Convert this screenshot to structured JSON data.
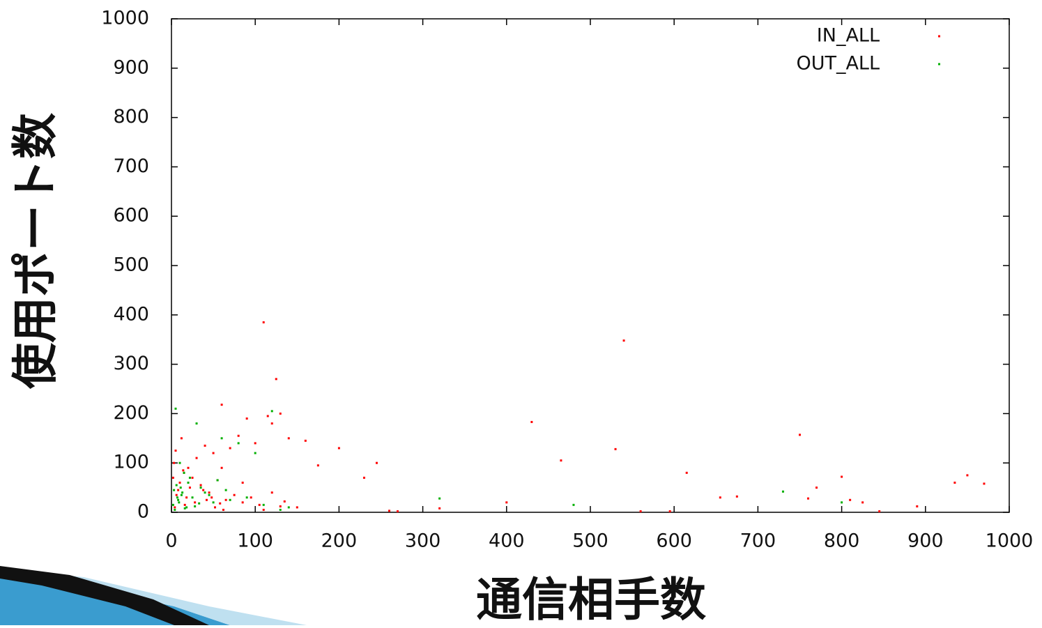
{
  "chart_data": {
    "type": "scatter",
    "x_label": "通信相手数",
    "y_label": "使用ポート数",
    "xlim": [
      0,
      1000
    ],
    "ylim": [
      0,
      1000
    ],
    "xticks": [
      0,
      100,
      200,
      300,
      400,
      500,
      600,
      700,
      800,
      900,
      1000
    ],
    "yticks": [
      0,
      100,
      200,
      300,
      400,
      500,
      600,
      700,
      800,
      900,
      1000
    ],
    "legend": "upper right",
    "series": [
      {
        "name": "IN_ALL",
        "color": "#ff0000",
        "x": [
          110,
          125,
          540,
          430,
          750,
          530,
          465,
          200,
          245,
          60,
          90,
          615,
          800,
          950,
          970,
          935,
          770,
          655,
          675,
          760,
          810,
          890,
          230,
          175,
          160,
          140,
          115,
          130,
          120,
          80,
          100,
          70,
          50,
          40,
          30,
          20,
          15,
          10,
          5,
          8,
          3,
          25,
          35,
          45,
          55,
          65,
          75,
          85,
          95,
          105,
          150,
          130,
          110,
          320,
          400,
          260,
          270,
          12,
          18,
          22,
          28,
          6,
          4,
          2,
          14,
          16,
          38,
          42,
          48,
          52,
          58,
          62,
          120,
          135,
          60,
          85,
          825,
          845,
          595,
          560
        ],
        "values": [
          385,
          270,
          348,
          183,
          157,
          128,
          105,
          130,
          100,
          218,
          190,
          80,
          72,
          75,
          58,
          60,
          50,
          30,
          32,
          28,
          25,
          12,
          70,
          95,
          145,
          150,
          195,
          200,
          180,
          155,
          140,
          130,
          120,
          135,
          110,
          90,
          80,
          60,
          125,
          45,
          100,
          70,
          55,
          40,
          65,
          25,
          35,
          20,
          30,
          15,
          10,
          12,
          5,
          8,
          20,
          3,
          2,
          150,
          30,
          50,
          20,
          35,
          10,
          70,
          85,
          15,
          45,
          25,
          30,
          10,
          18,
          5,
          40,
          22,
          90,
          60,
          20,
          2,
          2,
          2
        ]
      },
      {
        "name": "OUT_ALL",
        "color": "#00b000",
        "x": [
          120,
          30,
          5,
          60,
          80,
          480,
          730,
          800,
          320,
          100,
          10,
          20,
          40,
          15,
          25,
          35,
          50,
          3,
          8,
          12,
          2,
          6,
          18,
          22,
          45,
          70,
          90,
          110,
          130,
          140,
          65,
          55,
          4,
          7,
          9,
          11,
          13,
          16,
          28,
          33
        ],
        "values": [
          205,
          180,
          210,
          150,
          140,
          15,
          42,
          20,
          28,
          120,
          100,
          60,
          40,
          80,
          30,
          50,
          20,
          45,
          25,
          35,
          15,
          55,
          10,
          70,
          35,
          25,
          30,
          15,
          5,
          10,
          45,
          65,
          5,
          30,
          20,
          50,
          40,
          8,
          12,
          18
        ]
      }
    ]
  }
}
